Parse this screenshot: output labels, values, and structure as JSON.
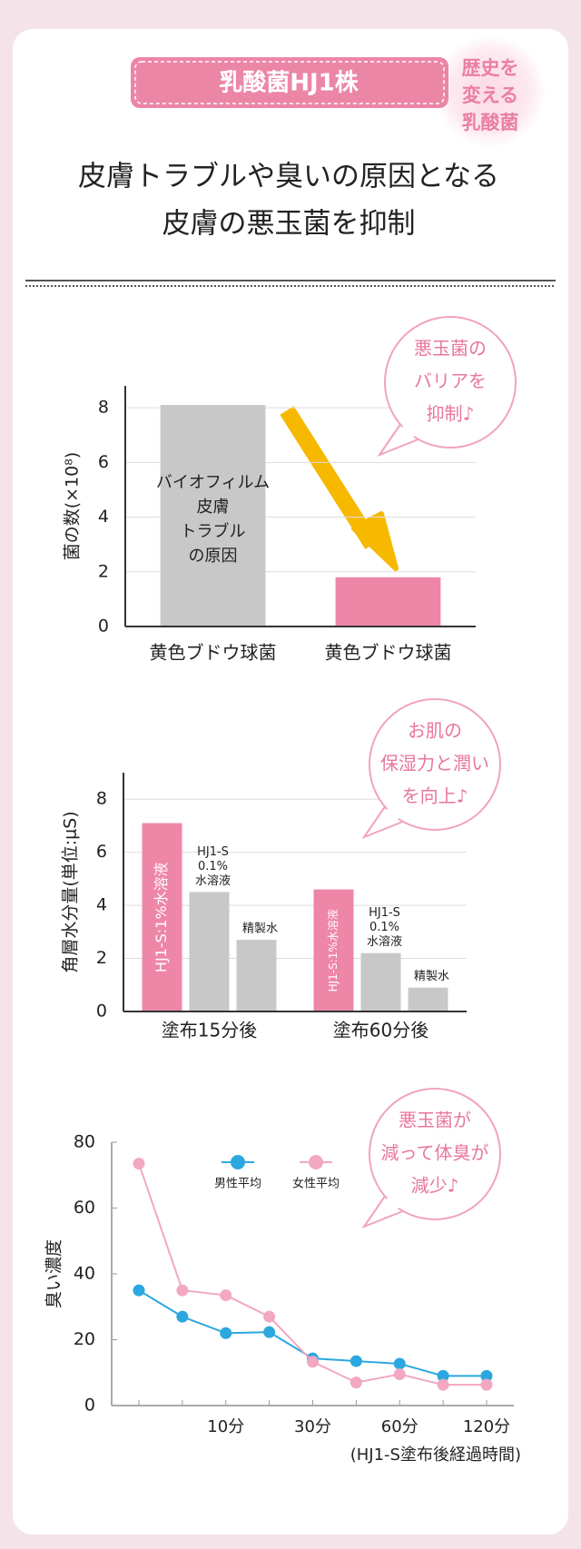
{
  "header": {
    "badge": "乳酸菌HJ1株",
    "seal": [
      "歴史を",
      "変える",
      "乳酸菌"
    ],
    "title": [
      "皮膚トラブルや臭いの原因となる",
      "皮膚の悪玉菌を抑制"
    ]
  },
  "chart_data": [
    {
      "type": "bar",
      "y_label": "菌の数(×10⁸)",
      "categories": [
        "黄色ブドウ球菌",
        "黄色ブドウ球菌"
      ],
      "values": [
        8.1,
        1.8
      ],
      "colors": [
        "#c8c8c8",
        "#ee86a8"
      ],
      "bar_annotation": [
        "バイオフィルム",
        "皮膚",
        "トラブル",
        "の原因"
      ],
      "callout": [
        "悪玉菌の",
        "バリアを",
        "抑制♪"
      ],
      "ylim": [
        0,
        8.8
      ],
      "yticks": [
        0,
        2,
        4,
        6,
        8
      ],
      "grid": true
    },
    {
      "type": "grouped_bar",
      "y_label": "角層水分量(単位:μS)",
      "categories": [
        "塗布15分後",
        "塗布60分後"
      ],
      "series": [
        {
          "label_lines": [
            "HJ1-S:1%水溶液"
          ],
          "color": "#ee86a8",
          "values": [
            7.1,
            4.6
          ]
        },
        {
          "label_lines": [
            "HJ1-S",
            "0.1%",
            "水溶液"
          ],
          "color": "#c8c8c8",
          "values": [
            4.5,
            2.2
          ]
        },
        {
          "label_lines": [
            "精製水"
          ],
          "color": "#c8c8c8",
          "values": [
            2.7,
            0.9
          ]
        }
      ],
      "callout": [
        "お肌の",
        "保湿力と潤い",
        "を向上♪"
      ],
      "ylim": [
        0,
        9
      ],
      "yticks": [
        0,
        2,
        4,
        6,
        8
      ],
      "grid": true
    },
    {
      "type": "line",
      "y_label": "臭い濃度",
      "x_label": "(HJ1-S塗布後経過時間)",
      "categories": [
        null,
        null,
        "10分",
        null,
        "30分",
        null,
        "60分",
        null,
        "120分"
      ],
      "series": [
        {
          "name": "男性平均",
          "color": "#2aa8df",
          "values": [
            35,
            27,
            22,
            22.3,
            14.3,
            13.5,
            12.7,
            9,
            9
          ]
        },
        {
          "name": "女性平均",
          "color": "#f2a7c3",
          "values": [
            73.5,
            35,
            33.5,
            27,
            13.3,
            7,
            9.5,
            6.3,
            6.3
          ]
        }
      ],
      "callout": [
        "悪玉菌が",
        "減って体臭が",
        "減少♪"
      ],
      "ylim": [
        0,
        80
      ],
      "yticks": [
        0,
        20,
        40,
        60,
        80
      ],
      "grid": false
    }
  ]
}
